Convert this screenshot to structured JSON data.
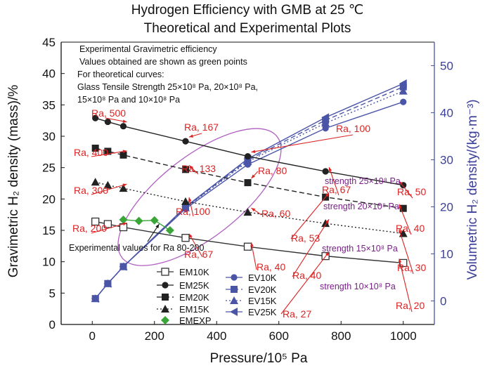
{
  "chart_data": {
    "type": "line",
    "title": "Hydrogen Efficiency with GMB at 25 ℃",
    "subtitle": "Theoretical and Experimental Plots",
    "xlabel": "Pressure/10⁵ Pa",
    "ylabel_left": "Gravimetric H₂ density (mass)/%",
    "ylabel_right": "Volumetric H₂ density/(kg·m⁻³)",
    "xlim": [
      -100,
      1100
    ],
    "ylim_left": [
      0,
      45
    ],
    "ylim_right": [
      -5,
      55
    ],
    "x_ticks": [
      "0",
      "200",
      "400",
      "600",
      "800",
      "1000"
    ],
    "y_ticks_left": [
      "0",
      "5",
      "10",
      "15",
      "20",
      "25",
      "30",
      "35",
      "40",
      "45"
    ],
    "y_ticks_right": [
      "0",
      "10",
      "20",
      "30",
      "40",
      "50"
    ],
    "notes": [
      "Experimental Gravimetric efficiency",
      "Values obtained are shown as green points",
      "For theoretical curves:",
      "Glass Tensile Strength 25×10⁸ Pa, 20×10⁸ Pa,",
      "15×10⁸ Pa and 10×10⁸ Pa"
    ],
    "experimental_label": "Experimental values for Ra 80-200",
    "strength_labels": [
      "strength 25×10⁸ Pa",
      "strength 20×10⁸ Pa",
      "strength 15×10⁸ Pa",
      "strength 10×10⁸ Pa"
    ],
    "ra_labels": [
      "Ra, 500",
      "Ra, 400",
      "Ra, 300",
      "Ra, 200",
      "Ra, 167",
      "Ra, 133",
      "Ra, 100",
      "Ra, 67",
      "Ra, 100",
      "Ra, 80",
      "Ra, 60",
      "Ra, 40",
      "Ra, 67",
      "Ra, 53",
      "Ra, 40",
      "Ra, 27",
      "Ra, 50",
      "Ra, 40",
      "Ra, 30",
      "Ra, 20"
    ],
    "series_left": [
      {
        "name": "EM10K",
        "marker": "square-open",
        "dash": "solid",
        "color": "#333333",
        "x": [
          10,
          50,
          100,
          300,
          500,
          750,
          1000
        ],
        "y": [
          16.4,
          16.0,
          15.5,
          13.8,
          12.4,
          10.9,
          9.8
        ]
      },
      {
        "name": "EM25K",
        "marker": "circle",
        "dash": "solid",
        "color": "#222222",
        "x": [
          10,
          50,
          100,
          300,
          500,
          750,
          1000
        ],
        "y": [
          32.9,
          32.3,
          31.6,
          29.2,
          26.8,
          24.4,
          22.2
        ]
      },
      {
        "name": "EM20K",
        "marker": "square",
        "dash": "dashed",
        "color": "#222222",
        "x": [
          10,
          50,
          100,
          300,
          500,
          750,
          1000
        ],
        "y": [
          28.1,
          27.6,
          27.0,
          24.7,
          22.6,
          20.3,
          18.5
        ]
      },
      {
        "name": "EM15K",
        "marker": "triangle",
        "dash": "dotted",
        "color": "#222222",
        "x": [
          10,
          50,
          100,
          300,
          500,
          750,
          1000
        ],
        "y": [
          22.7,
          22.2,
          21.7,
          19.6,
          17.9,
          16.1,
          14.5
        ]
      },
      {
        "name": "EMEXP",
        "marker": "diamond",
        "dash": "solid",
        "color": "#3aa63a",
        "x": [
          100,
          150,
          200,
          250
        ],
        "y": [
          16.7,
          16.5,
          16.6,
          15.0
        ]
      }
    ],
    "series_right": [
      {
        "name": "EV10K",
        "marker": "circle",
        "dash": "solid",
        "color": "#4a55a8",
        "x": [
          10,
          50,
          100,
          300,
          500,
          750,
          1000
        ],
        "y": [
          0.5,
          3.7,
          7.3,
          19.6,
          29.0,
          36.7,
          42.3
        ]
      },
      {
        "name": "EV20K",
        "marker": "square",
        "dash": "dashed",
        "color": "#4a55a8",
        "x": [
          10,
          50,
          100,
          300,
          500,
          750,
          1000
        ],
        "y": [
          0.5,
          3.7,
          7.3,
          19.9,
          29.9,
          38.4,
          45.5
        ]
      },
      {
        "name": "EV15K",
        "marker": "triangle",
        "dash": "dotted",
        "color": "#4a55a8",
        "x": [
          10,
          50,
          100,
          300,
          500,
          750,
          1000
        ],
        "y": [
          0.5,
          3.7,
          7.3,
          19.8,
          29.6,
          37.8,
          44.6
        ]
      },
      {
        "name": "EV25K",
        "marker": "triangle-left",
        "dash": "solid",
        "color": "#4a55a8",
        "x": [
          10,
          50,
          100,
          300,
          500,
          750,
          1000
        ],
        "y": [
          0.5,
          3.7,
          7.3,
          20.0,
          30.2,
          39.0,
          46.2
        ]
      }
    ],
    "grid": false,
    "legend_position": "bottom-center"
  }
}
